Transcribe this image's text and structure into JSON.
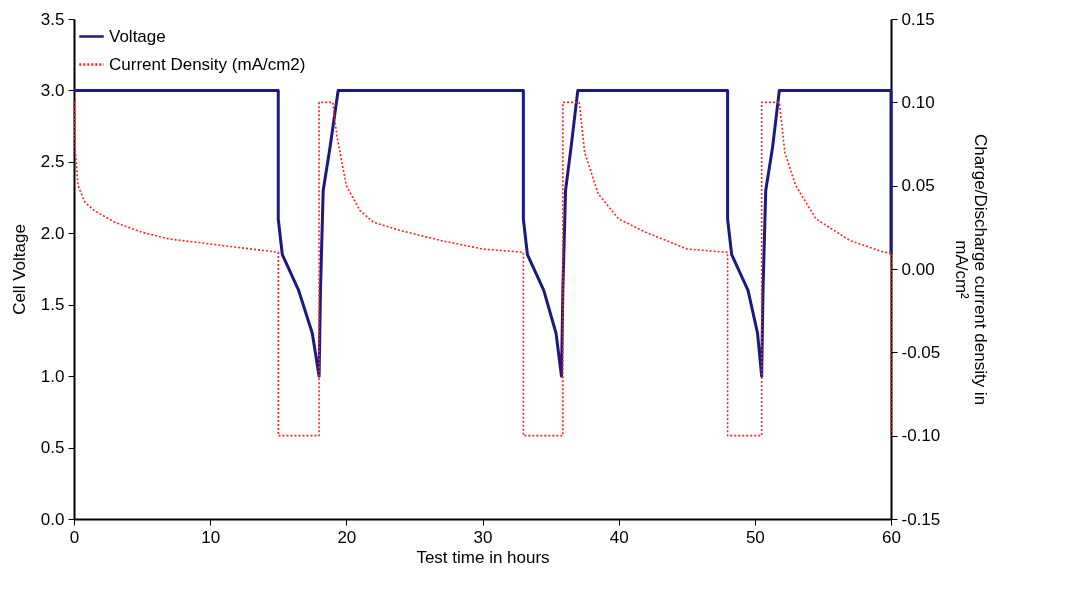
{
  "chart_data": {
    "type": "line",
    "xlabel": "Test time in hours",
    "ylabel": "Cell Voltage",
    "y2label": "Charge/Discharge current density in mA/cm²",
    "xlim": [
      0,
      60
    ],
    "xticks": [
      0,
      10,
      20,
      30,
      40,
      50,
      60
    ],
    "ylim": [
      0,
      3.5
    ],
    "yticks": [
      {
        "value": 0,
        "label": "0.0"
      },
      0.5,
      {
        "value": 1,
        "label": "1.0"
      },
      1.5,
      {
        "value": 2,
        "label": "2.0"
      },
      2.5,
      {
        "value": 3,
        "label": "3.0"
      },
      3.5
    ],
    "y2lim": [
      -0.15,
      0.15
    ],
    "y2ticks": [
      -0.15,
      {
        "value": -0.1,
        "label": "-0.10"
      },
      -0.05,
      {
        "value": 0,
        "label": "0.00"
      },
      0.05,
      {
        "value": 0.1,
        "label": "0.10"
      },
      0.15
    ],
    "legend": "top left",
    "grid": false,
    "series": [
      {
        "name": "Voltage",
        "color": "#1a1a80",
        "line_style": "solid",
        "x": [
          0,
          15.0,
          15.0,
          15.3,
          16.5,
          17.5,
          18.0,
          18.1,
          18.3,
          18.8,
          19.4,
          33.0,
          33.0,
          33.3,
          34.5,
          35.4,
          35.8,
          35.9,
          36.1,
          36.5,
          37.0,
          48.0,
          48.0,
          48.3,
          49.5,
          50.2,
          50.5,
          50.6,
          50.8,
          51.3,
          51.8,
          60.0,
          60.0
        ],
        "values": [
          3.0,
          3.0,
          2.1,
          1.85,
          1.6,
          1.3,
          1.0,
          1.6,
          2.3,
          2.6,
          3.0,
          3.0,
          2.1,
          1.85,
          1.6,
          1.3,
          1.0,
          1.6,
          2.3,
          2.6,
          3.0,
          3.0,
          2.1,
          1.85,
          1.6,
          1.3,
          1.0,
          1.6,
          2.3,
          2.6,
          3.0,
          3.0,
          1.85
        ]
      },
      {
        "name": "Current Density (mA/cm2)",
        "color": "#ff2020",
        "line_style": "dotted",
        "axis": "y2",
        "x": [
          0,
          0.1,
          0.3,
          0.8,
          1.5,
          3,
          5,
          7,
          10,
          13,
          15.0,
          15.0,
          18.0,
          18.0,
          19.0,
          19.3,
          20,
          21,
          22,
          24,
          27,
          30,
          33.0,
          33.0,
          35.9,
          35.9,
          37.1,
          37.5,
          38.5,
          40,
          42,
          45,
          48.0,
          48.0,
          50.5,
          50.5,
          51.8,
          52.2,
          53,
          54.5,
          57,
          59.5,
          60,
          60
        ],
        "values": [
          0.1,
          0.07,
          0.05,
          0.04,
          0.035,
          0.028,
          0.022,
          0.018,
          0.015,
          0.012,
          0.01,
          -0.1,
          -0.1,
          0.1,
          0.1,
          0.08,
          0.05,
          0.035,
          0.028,
          0.023,
          0.017,
          0.012,
          0.01,
          -0.1,
          -0.1,
          0.1,
          0.1,
          0.07,
          0.045,
          0.03,
          0.022,
          0.012,
          0.01,
          -0.1,
          -0.1,
          0.1,
          0.1,
          0.07,
          0.05,
          0.03,
          0.017,
          0.01,
          0.01,
          -0.1
        ]
      }
    ]
  }
}
